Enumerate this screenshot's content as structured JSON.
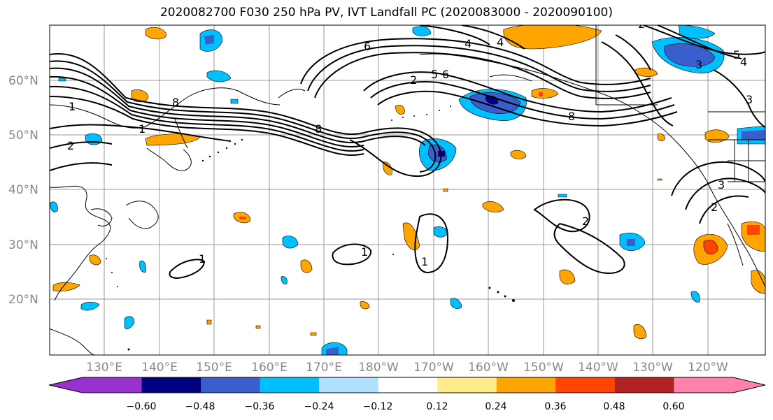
{
  "title": "2020082700 F030 250 hPa PV, IVT Landfall PC (2020083000 - 2020090100)",
  "map": {
    "lat_labels": [
      "20°N",
      "30°N",
      "40°N",
      "50°N",
      "60°N"
    ],
    "lon_labels": [
      "130°E",
      "140°E",
      "150°E",
      "160°E",
      "170°E",
      "180°W",
      "170°W",
      "160°W",
      "150°W",
      "140°W",
      "130°W",
      "120°W"
    ],
    "contour_labels": [
      "1",
      "2",
      "8",
      "1",
      "6",
      "5",
      "6",
      "2",
      "8",
      "8",
      "4",
      "4",
      "3",
      "5",
      "4",
      "3",
      "2",
      "3",
      "2",
      "2",
      "1",
      "1",
      "1"
    ],
    "line_color": "#000000",
    "coast_color": "#000000",
    "grid_color": "#999999"
  },
  "colorbar": {
    "colors": [
      "#9932cc",
      "#000080",
      "#3a5fcd",
      "#00bfff",
      "#b0e2ff",
      "#ffffff",
      "#ffec8b",
      "#ffa500",
      "#ff4500",
      "#b22222",
      "#ff82ab"
    ],
    "tick_labels": [
      "−0.60",
      "−0.48",
      "−0.36",
      "−0.24",
      "−0.12",
      "0.12",
      "0.24",
      "0.36",
      "0.48",
      "0.60"
    ]
  }
}
